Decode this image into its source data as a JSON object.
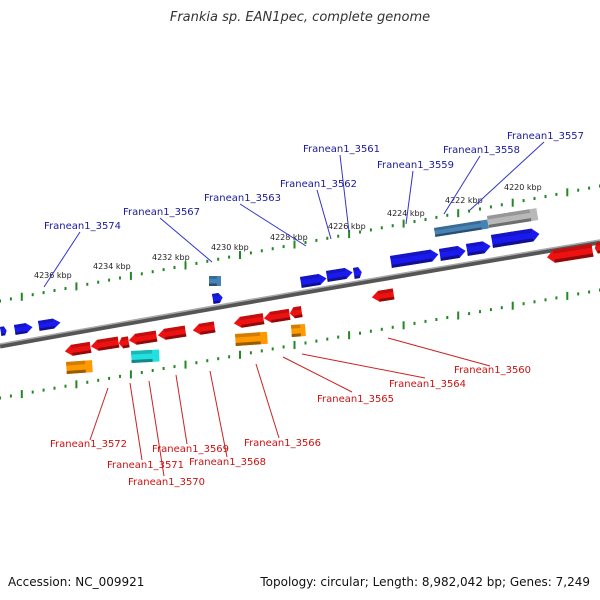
{
  "title": "Frankia sp. EAN1pec, complete genome",
  "footer": {
    "accession": "Accession: NC_009921",
    "topology": "Topology: circular; Length: 8,982,042 bp; Genes: 7,249"
  },
  "kbp_ticks": [
    "4236 kbp",
    "4234 kbp",
    "4232 kbp",
    "4230 kbp",
    "4228 kbp",
    "4226 kbp",
    "4224 kbp",
    "4222 kbp",
    "4220 kbp"
  ],
  "labels_top": [
    "Franean1_3574",
    "Franean1_3567",
    "Franean1_3563",
    "Franean1_3562",
    "Franean1_3561",
    "Franean1_3559",
    "Franean1_3558",
    "Franean1_3557"
  ],
  "labels_bottom": [
    "Franean1_3572",
    "Franean1_3571",
    "Franean1_3570",
    "Franean1_3569",
    "Franean1_3568",
    "Franean1_3566",
    "Franean1_3565",
    "Franean1_3564",
    "Franean1_3560"
  ],
  "colors": {
    "forward_gene": "#1a1aee",
    "reverse_gene": "#ee1111",
    "orange_feature": "#ff9900",
    "cyan_feature": "#22e0e0",
    "steel_feature": "#4682b4",
    "grey_feature": "#b8b8b8",
    "top_label": "#1a1a99",
    "bottom_label": "#cc1111",
    "tick": "#228822"
  }
}
